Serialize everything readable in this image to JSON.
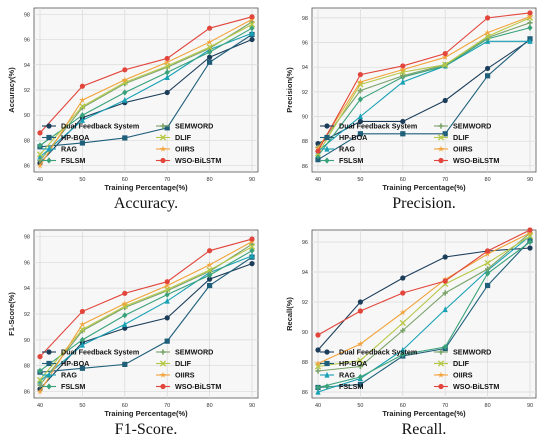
{
  "styles": [
    {
      "name": "Dual Feedback System",
      "color": "#1c3d5a",
      "marker": "circle"
    },
    {
      "name": "HP-BOA",
      "color": "#1f5f7a",
      "marker": "square"
    },
    {
      "name": "RAG",
      "color": "#17a1b5",
      "marker": "triangle"
    },
    {
      "name": "FSLSM",
      "color": "#3aa27a",
      "marker": "diamond"
    },
    {
      "name": "SEMWORD",
      "color": "#7aa36a",
      "marker": "plus"
    },
    {
      "name": "DLIF",
      "color": "#b7c847",
      "marker": "x"
    },
    {
      "name": "OIIRS",
      "color": "#f2a33a",
      "marker": "star"
    },
    {
      "name": "WSO-BiLSTM",
      "color": "#e2453b",
      "marker": "circle"
    }
  ],
  "chart_data": [
    {
      "type": "line",
      "caption": "Accuracy.",
      "xlabel": "Training Percentage(%)",
      "ylabel": "Accuracy(%)",
      "x": [
        40,
        50,
        60,
        70,
        80,
        90
      ],
      "xticks": [
        "40",
        "50",
        "60",
        "70",
        "80",
        "90"
      ],
      "ylim": [
        85.5,
        98.5
      ],
      "yticks": [
        86,
        88,
        90,
        92,
        94,
        96,
        98
      ],
      "grid": true,
      "legend_position": "bottom-right",
      "series": [
        {
          "name": "Dual Feedback System",
          "values": [
            86.2,
            89.8,
            91.0,
            91.8,
            94.6,
            96.0
          ]
        },
        {
          "name": "HP-BOA",
          "values": [
            87.5,
            87.8,
            88.2,
            89.0,
            94.2,
            96.4
          ]
        },
        {
          "name": "RAG",
          "values": [
            86.7,
            89.6,
            91.2,
            93.0,
            95.2,
            96.5
          ]
        },
        {
          "name": "FSLSM",
          "values": [
            87.6,
            90.0,
            91.8,
            93.4,
            95.0,
            96.9
          ]
        },
        {
          "name": "SEMWORD",
          "values": [
            86.4,
            90.6,
            92.5,
            93.8,
            95.3,
            97.4
          ]
        },
        {
          "name": "DLIF",
          "values": [
            86.9,
            90.7,
            92.6,
            93.9,
            95.4,
            97.2
          ]
        },
        {
          "name": "OIIRS",
          "values": [
            86.0,
            91.2,
            92.8,
            94.2,
            95.8,
            97.6
          ]
        },
        {
          "name": "WSO-BiLSTM",
          "values": [
            88.6,
            92.3,
            93.6,
            94.5,
            96.9,
            97.8
          ]
        }
      ]
    },
    {
      "type": "line",
      "caption": "Precision.",
      "xlabel": "Training Percentage(%)",
      "ylabel": "Precision(%)",
      "x": [
        40,
        50,
        60,
        70,
        80,
        90
      ],
      "xticks": [
        "40",
        "50",
        "60",
        "70",
        "80",
        "90"
      ],
      "ylim": [
        85.5,
        98.8
      ],
      "yticks": [
        86,
        88,
        90,
        92,
        94,
        96,
        98
      ],
      "grid": true,
      "legend_position": "bottom-right",
      "series": [
        {
          "name": "Dual Feedback System",
          "values": [
            87.8,
            89.6,
            89.6,
            91.3,
            93.9,
            96.2
          ]
        },
        {
          "name": "HP-BOA",
          "values": [
            86.5,
            88.6,
            88.6,
            88.6,
            93.3,
            96.3
          ]
        },
        {
          "name": "RAG",
          "values": [
            87.2,
            90.0,
            92.8,
            94.1,
            96.1,
            96.1
          ]
        },
        {
          "name": "FSLSM",
          "values": [
            86.8,
            91.4,
            93.2,
            94.1,
            96.3,
            97.2
          ]
        },
        {
          "name": "SEMWORD",
          "values": [
            87.5,
            92.1,
            93.3,
            94.2,
            96.4,
            97.6
          ]
        },
        {
          "name": "DLIF",
          "values": [
            87.0,
            92.6,
            93.6,
            94.2,
            96.5,
            98.0
          ]
        },
        {
          "name": "OIIRS",
          "values": [
            87.4,
            92.8,
            93.8,
            94.8,
            96.8,
            98.1
          ]
        },
        {
          "name": "WSO-BiLSTM",
          "values": [
            87.2,
            93.4,
            94.1,
            95.1,
            98.0,
            98.4
          ]
        }
      ]
    },
    {
      "type": "line",
      "caption": "F1-Score.",
      "xlabel": "Training Percentage(%)",
      "ylabel": "F1-Score(%)",
      "x": [
        40,
        50,
        60,
        70,
        80,
        90
      ],
      "xticks": [
        "40",
        "50",
        "60",
        "70",
        "80",
        "90"
      ],
      "ylim": [
        85.5,
        98.5
      ],
      "yticks": [
        86,
        88,
        90,
        92,
        94,
        96,
        98
      ],
      "grid": true,
      "legend_position": "bottom-right",
      "series": [
        {
          "name": "Dual Feedback System",
          "values": [
            86.2,
            89.8,
            90.9,
            91.7,
            94.7,
            95.9
          ]
        },
        {
          "name": "HP-BOA",
          "values": [
            87.5,
            87.8,
            88.1,
            89.9,
            94.2,
            96.4
          ]
        },
        {
          "name": "RAG",
          "values": [
            86.8,
            89.6,
            91.2,
            93.0,
            95.2,
            96.5
          ]
        },
        {
          "name": "FSLSM",
          "values": [
            87.6,
            90.0,
            91.9,
            93.5,
            95.0,
            96.9
          ]
        },
        {
          "name": "SEMWORD",
          "values": [
            86.5,
            90.7,
            92.5,
            93.8,
            95.3,
            97.4
          ]
        },
        {
          "name": "DLIF",
          "values": [
            86.9,
            90.8,
            92.6,
            93.9,
            95.4,
            97.2
          ]
        },
        {
          "name": "OIIRS",
          "values": [
            86.0,
            91.2,
            92.8,
            94.2,
            95.8,
            97.6
          ]
        },
        {
          "name": "WSO-BiLSTM",
          "values": [
            88.7,
            92.2,
            93.6,
            94.5,
            96.9,
            97.8
          ]
        }
      ]
    },
    {
      "type": "line",
      "caption": "Recall.",
      "xlabel": "Training Percentage(%)",
      "ylabel": "Recall(%)",
      "x": [
        40,
        50,
        60,
        70,
        80,
        90
      ],
      "xticks": [
        "40",
        "50",
        "60",
        "70",
        "80",
        "90"
      ],
      "ylim": [
        85.6,
        96.8
      ],
      "yticks": [
        86,
        88,
        90,
        92,
        94,
        96
      ],
      "grid": true,
      "legend_position": "bottom-right",
      "series": [
        {
          "name": "Dual Feedback System",
          "values": [
            88.8,
            92.0,
            93.6,
            95.0,
            95.4,
            95.6
          ]
        },
        {
          "name": "HP-BOA",
          "values": [
            86.3,
            86.5,
            88.4,
            88.9,
            93.1,
            96.1
          ]
        },
        {
          "name": "RAG",
          "values": [
            86.0,
            86.9,
            88.8,
            91.5,
            94.1,
            96.4
          ]
        },
        {
          "name": "FSLSM",
          "values": [
            86.3,
            87.0,
            88.5,
            89.0,
            93.9,
            96.0
          ]
        },
        {
          "name": "SEMWORD",
          "values": [
            87.4,
            87.7,
            90.1,
            92.6,
            94.2,
            96.6
          ]
        },
        {
          "name": "DLIF",
          "values": [
            87.7,
            88.1,
            90.6,
            93.2,
            94.6,
            96.4
          ]
        },
        {
          "name": "OIIRS",
          "values": [
            87.9,
            89.2,
            91.3,
            93.5,
            95.2,
            96.6
          ]
        },
        {
          "name": "WSO-BiLSTM",
          "values": [
            89.8,
            91.4,
            92.6,
            93.4,
            95.4,
            96.8
          ]
        }
      ]
    }
  ]
}
